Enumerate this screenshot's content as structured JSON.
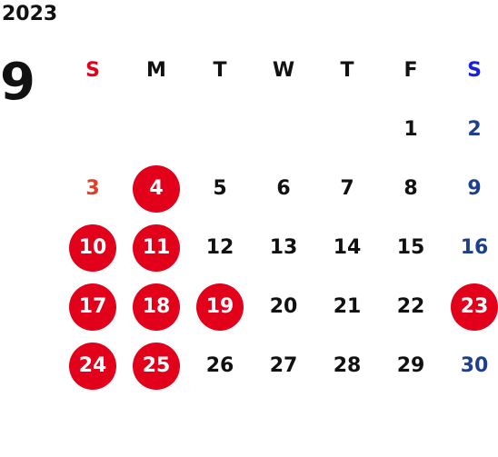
{
  "calendar": {
    "year": "2023",
    "month": "9",
    "weekdays": [
      {
        "label": "S",
        "color": "#e2001a"
      },
      {
        "label": "M",
        "color": "#111111"
      },
      {
        "label": "T",
        "color": "#111111"
      },
      {
        "label": "W",
        "color": "#111111"
      },
      {
        "label": "T",
        "color": "#111111"
      },
      {
        "label": "F",
        "color": "#111111"
      },
      {
        "label": "S",
        "color": "#1a22d8"
      }
    ],
    "colors": {
      "sunday": "#e0402a",
      "saturday": "#1e3f8c",
      "weekday": "#111111",
      "highlight_bg": "#e2001a",
      "highlight_text": "#ffffff"
    },
    "weeks": [
      [
        {
          "day": "",
          "highlighted": false
        },
        {
          "day": "",
          "highlighted": false
        },
        {
          "day": "",
          "highlighted": false
        },
        {
          "day": "",
          "highlighted": false
        },
        {
          "day": "",
          "highlighted": false
        },
        {
          "day": "1",
          "highlighted": false
        },
        {
          "day": "2",
          "highlighted": false
        }
      ],
      [
        {
          "day": "3",
          "highlighted": false
        },
        {
          "day": "4",
          "highlighted": true
        },
        {
          "day": "5",
          "highlighted": false
        },
        {
          "day": "6",
          "highlighted": false
        },
        {
          "day": "7",
          "highlighted": false
        },
        {
          "day": "8",
          "highlighted": false
        },
        {
          "day": "9",
          "highlighted": false
        }
      ],
      [
        {
          "day": "10",
          "highlighted": true
        },
        {
          "day": "11",
          "highlighted": true
        },
        {
          "day": "12",
          "highlighted": false
        },
        {
          "day": "13",
          "highlighted": false
        },
        {
          "day": "14",
          "highlighted": false
        },
        {
          "day": "15",
          "highlighted": false
        },
        {
          "day": "16",
          "highlighted": false
        }
      ],
      [
        {
          "day": "17",
          "highlighted": true
        },
        {
          "day": "18",
          "highlighted": true
        },
        {
          "day": "19",
          "highlighted": true
        },
        {
          "day": "20",
          "highlighted": false
        },
        {
          "day": "21",
          "highlighted": false
        },
        {
          "day": "22",
          "highlighted": false
        },
        {
          "day": "23",
          "highlighted": true
        }
      ],
      [
        {
          "day": "24",
          "highlighted": true
        },
        {
          "day": "25",
          "highlighted": true
        },
        {
          "day": "26",
          "highlighted": false
        },
        {
          "day": "27",
          "highlighted": false
        },
        {
          "day": "28",
          "highlighted": false
        },
        {
          "day": "29",
          "highlighted": false
        },
        {
          "day": "30",
          "highlighted": false
        }
      ]
    ]
  }
}
